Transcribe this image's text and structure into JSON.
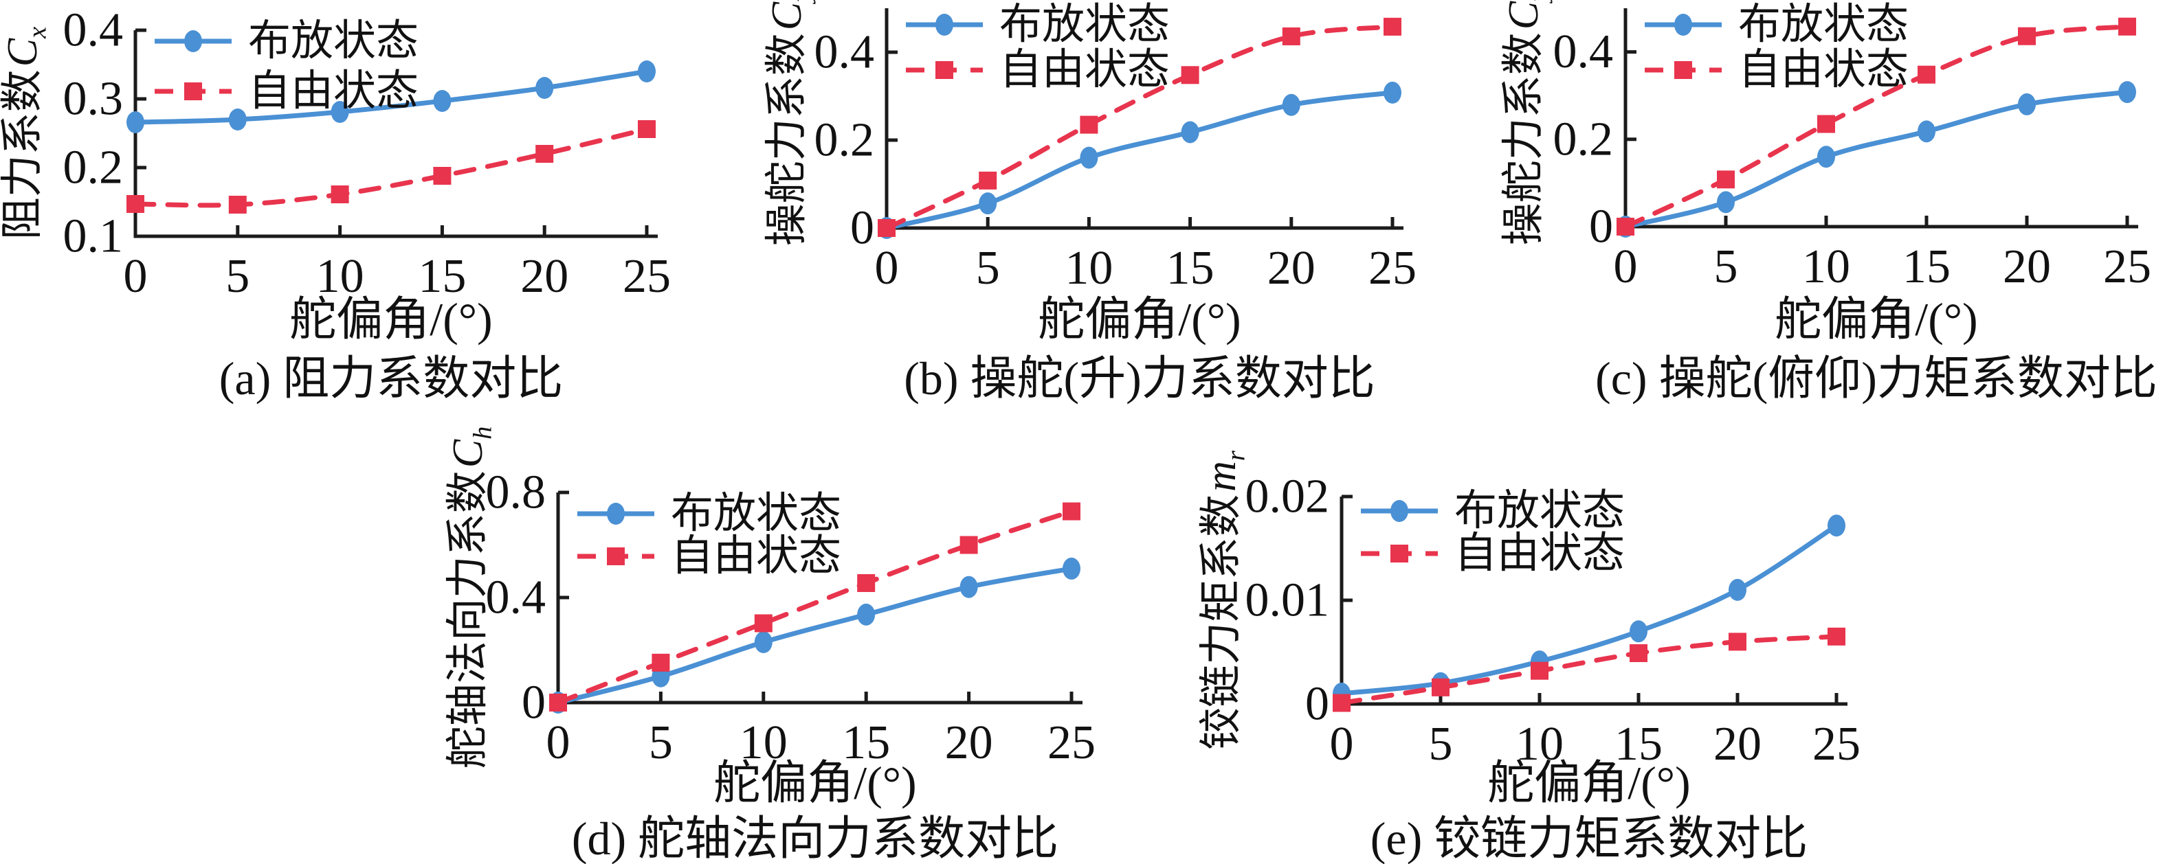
{
  "figure": {
    "background": "#ffffff",
    "axis_color": "#1b1b1b",
    "text_color": "#111111"
  },
  "legend": {
    "deployed_label": "布放状态",
    "free_label": "自由状态",
    "deployed_color": "#4a90d4",
    "free_color": "#e8344d"
  },
  "chart_data": [
    {
      "type": "line",
      "caption": "(a) 阻力系数对比",
      "xlabel": "舵偏角/(°)",
      "ylabel": "阻力系数",
      "ylabel_symbol": "C",
      "ylabel_subscript": "x",
      "x": [
        0,
        5,
        10,
        15,
        20,
        25
      ],
      "xlim": [
        0,
        25
      ],
      "xticks": [
        0,
        5,
        10,
        15,
        20,
        25
      ],
      "xtick_labels": [
        "0",
        "5",
        "10",
        "15",
        "20",
        "25"
      ],
      "ylim": [
        0.1,
        0.4
      ],
      "yticks": [
        0.1,
        0.2,
        0.3,
        0.4
      ],
      "ytick_labels": [
        "0.1",
        "0.2",
        "0.3",
        "0.4"
      ],
      "grid": false,
      "legend_position": "upper-left",
      "series": [
        {
          "name": "布放状态",
          "color": "#4a90d4",
          "line": "solid",
          "marker": "circle",
          "values": [
            0.266,
            0.27,
            0.281,
            0.297,
            0.316,
            0.34
          ]
        },
        {
          "name": "自由状态",
          "color": "#e8344d",
          "line": "dashed",
          "marker": "square",
          "values": [
            0.147,
            0.146,
            0.161,
            0.188,
            0.22,
            0.256
          ]
        }
      ]
    },
    {
      "type": "line",
      "caption": "(b) 操舵(升)力系数对比",
      "xlabel": "舵偏角/(°)",
      "ylabel": "操舵力系数",
      "ylabel_symbol": "C",
      "ylabel_subscript": "y",
      "x": [
        0,
        5,
        10,
        15,
        20,
        25
      ],
      "xlim": [
        0,
        25
      ],
      "xticks": [
        0,
        5,
        10,
        15,
        20,
        25
      ],
      "xtick_labels": [
        "0",
        "5",
        "10",
        "15",
        "20",
        "25"
      ],
      "ylim": [
        0,
        0.5
      ],
      "yticks": [
        0,
        0.2,
        0.4
      ],
      "ytick_labels": [
        "0",
        "0.2",
        "0.4"
      ],
      "grid": false,
      "legend_position": "upper-left",
      "series": [
        {
          "name": "布放状态",
          "color": "#4a90d4",
          "line": "solid",
          "marker": "circle",
          "values": [
            0,
            0.056,
            0.16,
            0.218,
            0.28,
            0.308
          ]
        },
        {
          "name": "自由状态",
          "color": "#e8344d",
          "line": "dashed",
          "marker": "square",
          "values": [
            0,
            0.108,
            0.235,
            0.348,
            0.436,
            0.458
          ]
        }
      ]
    },
    {
      "type": "line",
      "caption": "(c) 操舵(俯仰)力矩系数对比",
      "xlabel": "舵偏角/(°)",
      "ylabel": "操舵力系数",
      "ylabel_symbol": "C",
      "ylabel_subscript": "y",
      "x": [
        0,
        5,
        10,
        15,
        20,
        25
      ],
      "xlim": [
        0,
        25
      ],
      "xticks": [
        0,
        5,
        10,
        15,
        20,
        25
      ],
      "xtick_labels": [
        "0",
        "5",
        "10",
        "15",
        "20",
        "25"
      ],
      "ylim": [
        0,
        0.5
      ],
      "yticks": [
        0,
        0.2,
        0.4
      ],
      "ytick_labels": [
        "0",
        "0.2",
        "0.4"
      ],
      "grid": false,
      "legend_position": "upper-left",
      "series": [
        {
          "name": "布放状态",
          "color": "#4a90d4",
          "line": "solid",
          "marker": "circle",
          "values": [
            0,
            0.056,
            0.16,
            0.218,
            0.28,
            0.308
          ]
        },
        {
          "name": "自由状态",
          "color": "#e8344d",
          "line": "dashed",
          "marker": "square",
          "values": [
            0,
            0.108,
            0.235,
            0.348,
            0.436,
            0.458
          ]
        }
      ]
    },
    {
      "type": "line",
      "caption": "(d) 舵轴法向力系数对比",
      "xlabel": "舵偏角/(°)",
      "ylabel": "舵轴法向力系数",
      "ylabel_symbol": "C",
      "ylabel_subscript": "h",
      "x": [
        0,
        5,
        10,
        15,
        20,
        25
      ],
      "xlim": [
        0,
        25
      ],
      "xticks": [
        0,
        5,
        10,
        15,
        20,
        25
      ],
      "xtick_labels": [
        "0",
        "5",
        "10",
        "15",
        "20",
        "25"
      ],
      "ylim": [
        0,
        0.8
      ],
      "yticks": [
        0,
        0.4,
        0.8
      ],
      "ytick_labels": [
        "0",
        "0.4",
        "0.8"
      ],
      "grid": false,
      "legend_position": "upper-left",
      "series": [
        {
          "name": "布放状态",
          "color": "#4a90d4",
          "line": "solid",
          "marker": "circle",
          "values": [
            0,
            0.1,
            0.23,
            0.335,
            0.44,
            0.51
          ]
        },
        {
          "name": "自由状态",
          "color": "#e8344d",
          "line": "dashed",
          "marker": "square",
          "values": [
            0,
            0.152,
            0.302,
            0.455,
            0.6,
            0.728
          ]
        }
      ]
    },
    {
      "type": "line",
      "caption": "(e) 铰链力矩系数对比",
      "xlabel": "舵偏角/(°)",
      "ylabel": "铰链力矩系数",
      "ylabel_symbol": "m",
      "ylabel_subscript": "r",
      "x": [
        0,
        5,
        10,
        15,
        20,
        25
      ],
      "xlim": [
        0,
        25
      ],
      "xticks": [
        0,
        5,
        10,
        15,
        20,
        25
      ],
      "xtick_labels": [
        "0",
        "5",
        "10",
        "15",
        "20",
        "25"
      ],
      "ylim": [
        0,
        0.02
      ],
      "yticks": [
        0,
        0.01,
        0.02
      ],
      "ytick_labels": [
        "0",
        "0.01",
        "0.02"
      ],
      "grid": false,
      "legend_position": "upper-left",
      "series": [
        {
          "name": "布放状态",
          "color": "#4a90d4",
          "line": "solid",
          "marker": "circle",
          "values": [
            0.001,
            0.002,
            0.0041,
            0.007,
            0.011,
            0.0172
          ]
        },
        {
          "name": "自由状态",
          "color": "#e8344d",
          "line": "dashed",
          "marker": "square",
          "values": [
            0.0001,
            0.0016,
            0.0032,
            0.0049,
            0.006,
            0.0065
          ]
        }
      ]
    }
  ]
}
